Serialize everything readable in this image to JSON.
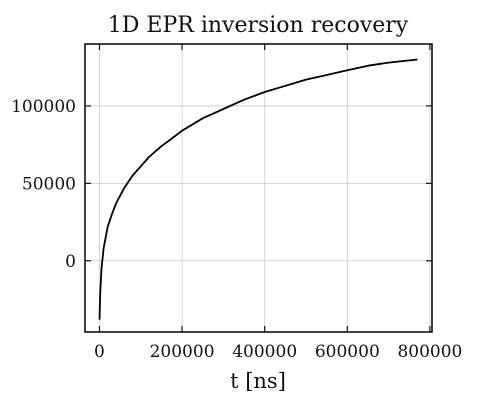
{
  "chart_data": {
    "type": "line",
    "title": "1D EPR inversion recovery",
    "xlabel": "t [ns]",
    "ylabel": "",
    "xlim": [
      -35000,
      805000
    ],
    "ylim": [
      -46000,
      140000
    ],
    "xticks": [
      0,
      200000,
      400000,
      600000,
      800000
    ],
    "xtick_labels": [
      "0",
      "200000",
      "400000",
      "600000",
      "800000"
    ],
    "yticks": [
      0,
      50000,
      100000
    ],
    "ytick_labels": [
      "0",
      "50000",
      "100000"
    ],
    "grid": true,
    "legend": "none",
    "series": [
      {
        "color": "#000000",
        "x": [
          0,
          2000,
          5000,
          10000,
          20000,
          30000,
          40000,
          50000,
          60000,
          70000,
          80000,
          100000,
          120000,
          150000,
          175000,
          200000,
          250000,
          300000,
          350000,
          400000,
          450000,
          500000,
          550000,
          600000,
          650000,
          700000,
          770000
        ],
        "y": [
          -38000,
          -20000,
          -5000,
          8000,
          22000,
          30000,
          37000,
          42000,
          47000,
          51000,
          55000,
          61000,
          67000,
          74000,
          79000,
          84000,
          92000,
          98000,
          104000,
          109000,
          113000,
          117000,
          120000,
          123000,
          126000,
          128000,
          130000
        ]
      }
    ]
  }
}
